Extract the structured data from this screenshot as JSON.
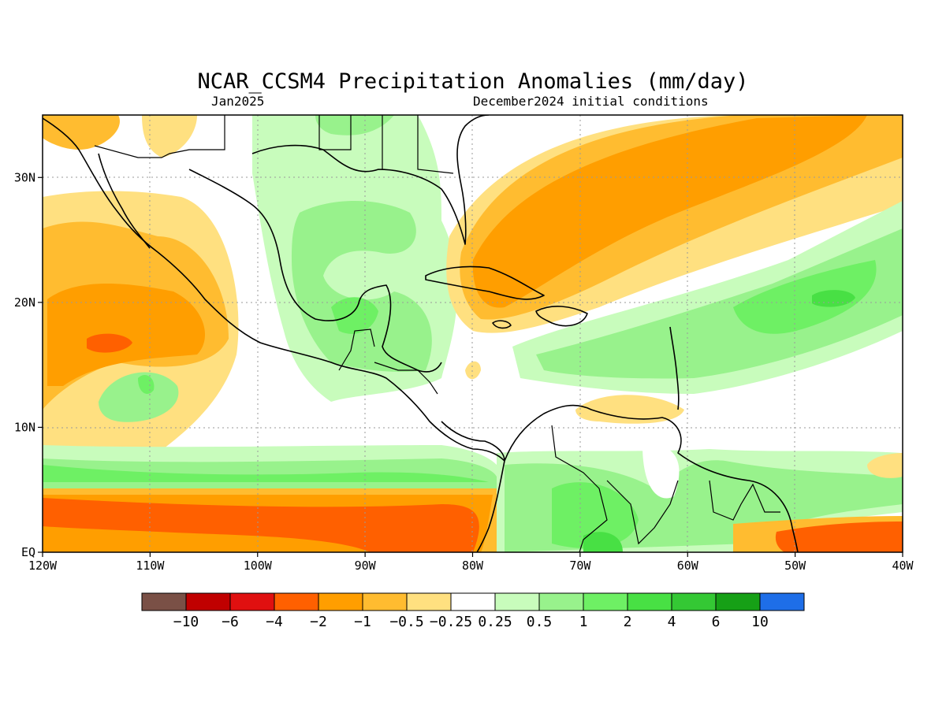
{
  "title": "NCAR_CCSM4 Precipitation Anomalies (mm/day)",
  "subtitle_left": "Jan2025",
  "subtitle_right": "December2024 initial conditions",
  "map": {
    "lon_range": [
      -120,
      -40
    ],
    "lat_range": [
      0,
      35
    ],
    "x_ticks": [
      {
        "value": -120,
        "label": "120W"
      },
      {
        "value": -110,
        "label": "110W"
      },
      {
        "value": -100,
        "label": "100W"
      },
      {
        "value": -90,
        "label": "90W"
      },
      {
        "value": -80,
        "label": "80W"
      },
      {
        "value": -70,
        "label": "70W"
      },
      {
        "value": -60,
        "label": "60W"
      },
      {
        "value": -50,
        "label": "50W"
      },
      {
        "value": -40,
        "label": "40W"
      }
    ],
    "y_ticks": [
      {
        "value": 0,
        "label": "EQ"
      },
      {
        "value": 10,
        "label": "10N"
      },
      {
        "value": 20,
        "label": "20N"
      },
      {
        "value": 30,
        "label": "30N"
      }
    ],
    "grid": true
  },
  "colorbar": {
    "colors": [
      "#7a5046",
      "#c00000",
      "#e01010",
      "#ff6000",
      "#ff9e00",
      "#ffbc30",
      "#ffe080",
      "#ffffff",
      "#c8fcbc",
      "#98f28c",
      "#6ef064",
      "#48e044",
      "#34c834",
      "#16a016",
      "#1e6ee8"
    ],
    "labels": [
      "−10",
      "−6",
      "−4",
      "−2",
      "−1",
      "−0.5",
      "−0.25",
      "0.25",
      "0.5",
      "1",
      "2",
      "4",
      "6",
      "10"
    ]
  }
}
